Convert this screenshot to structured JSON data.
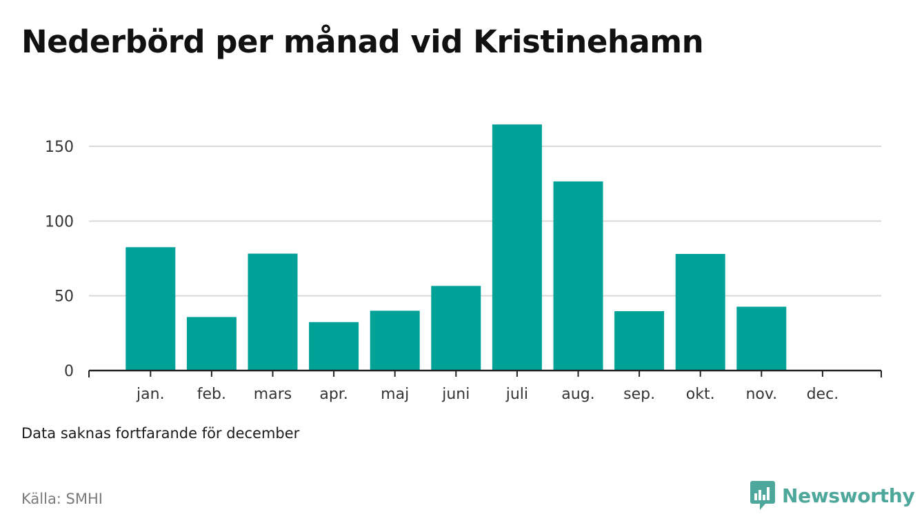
{
  "header": {
    "title": "Nederbörd per månad vid Kristinehamn"
  },
  "footer": {
    "note": "Data saknas fortfarande för december",
    "source": "Källa: SMHI",
    "brand": "Newsworthy"
  },
  "colors": {
    "bar": "#00a298",
    "grid": "#d9d9d9",
    "axis": "#222222",
    "brand": "#4da79b"
  },
  "chart_data": {
    "type": "bar",
    "title": "Nederbörd per månad vid Kristinehamn",
    "xlabel": "",
    "ylabel": "",
    "categories": [
      "jan.",
      "feb.",
      "mars",
      "apr.",
      "maj",
      "juni",
      "juli",
      "aug.",
      "sep.",
      "okt.",
      "nov.",
      "dec."
    ],
    "values": [
      82.5,
      35.8,
      78.2,
      32.4,
      40.0,
      56.6,
      164.6,
      126.5,
      39.7,
      78.0,
      42.7,
      null
    ],
    "ylim": [
      0,
      170
    ],
    "yticks": [
      0,
      50,
      100,
      150
    ],
    "grid": true,
    "legend": "none"
  }
}
